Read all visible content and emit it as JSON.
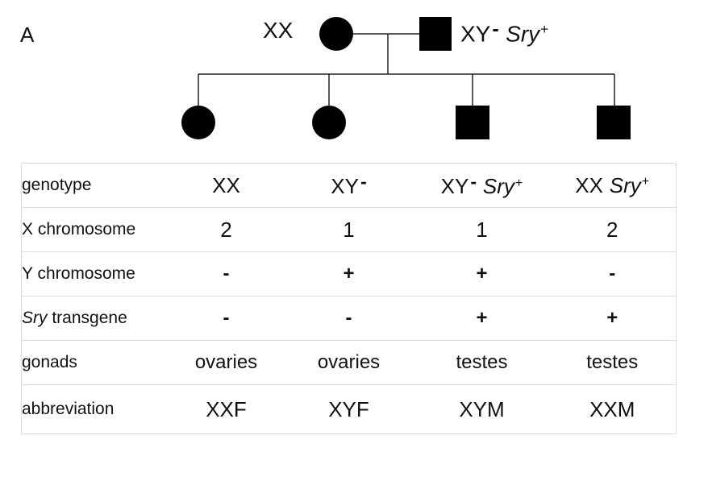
{
  "panel_label": "A",
  "parents": {
    "mother": {
      "genotype": "XX"
    },
    "father": {
      "genotype_base": "XY",
      "genotype_minus": "-",
      "transgene": "Sry",
      "transgene_sup": "+"
    }
  },
  "table": {
    "rows": [
      {
        "label": "genotype",
        "label_italic_prefix": "",
        "cells": [
          {
            "base": "XX",
            "minus": "",
            "transgene": "",
            "sup": ""
          },
          {
            "base": "XY",
            "minus": "-",
            "transgene": "",
            "sup": ""
          },
          {
            "base": "XY",
            "minus": "-",
            "transgene": "Sry",
            "sup": "+"
          },
          {
            "base": "XX",
            "minus": "",
            "transgene": "Sry",
            "sup": "+"
          }
        ]
      },
      {
        "label": "X chromosome",
        "label_italic_prefix": "",
        "values": [
          "2",
          "1",
          "1",
          "2"
        ]
      },
      {
        "label": "Y chromosome",
        "label_italic_prefix": "",
        "values": [
          "-",
          "+",
          "+",
          "-"
        ]
      },
      {
        "label": "transgene",
        "label_italic_prefix": "Sry",
        "values": [
          "-",
          "-",
          "+",
          "+"
        ]
      },
      {
        "label": "gonads",
        "label_italic_prefix": "",
        "values": [
          "ovaries",
          "ovaries",
          "testes",
          "testes"
        ]
      },
      {
        "label": "abbreviation",
        "label_italic_prefix": "",
        "values": [
          "XXF",
          "XYF",
          "XYM",
          "XXM"
        ]
      }
    ]
  }
}
